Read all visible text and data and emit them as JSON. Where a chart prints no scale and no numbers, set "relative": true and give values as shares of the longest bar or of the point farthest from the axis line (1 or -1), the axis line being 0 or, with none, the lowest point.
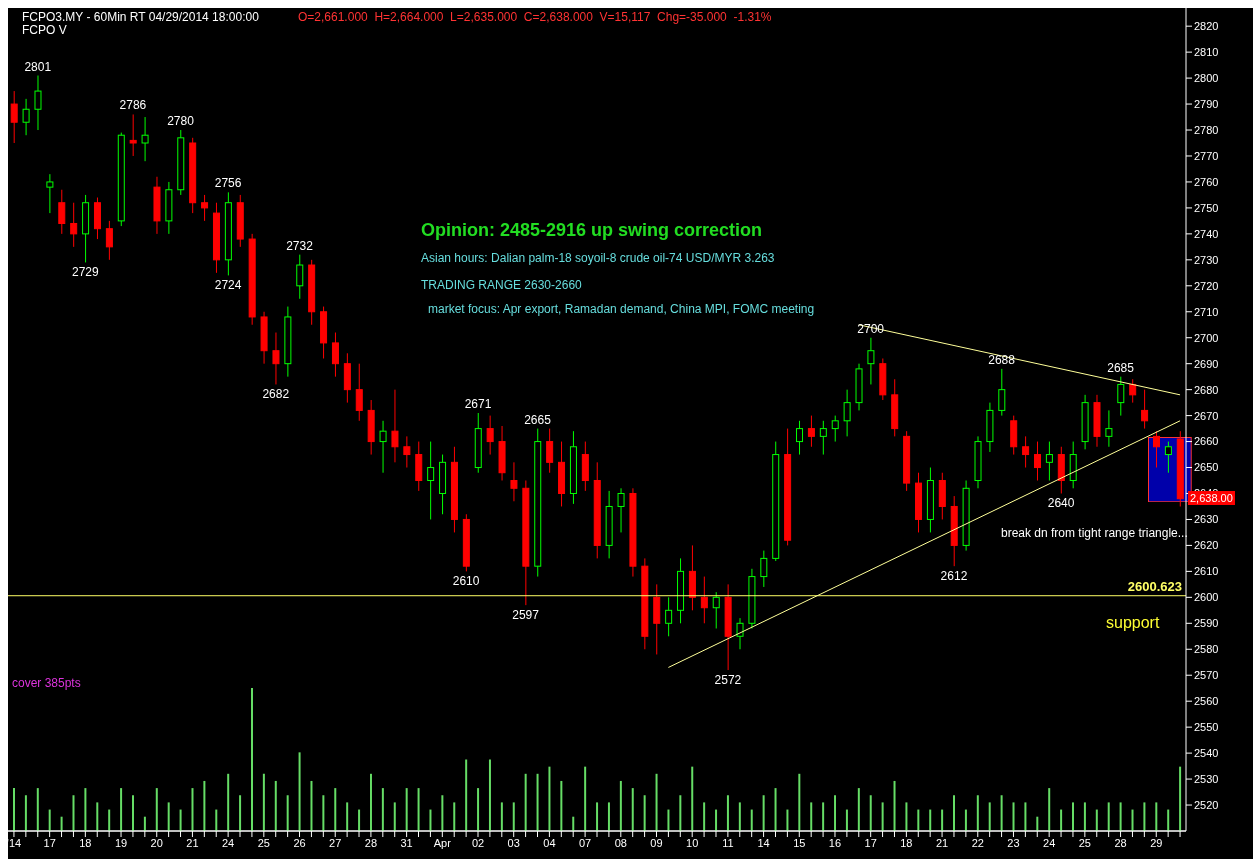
{
  "chart_data": [
    {
      "type": "candlestick",
      "title": "Opinion: 2485-2916 up swing correction",
      "subtitle": "FCPO3.MY - 60Min RT   04/29/2014 18:00:00",
      "categories": [
        "'14",
        null,
        null,
        "17",
        null,
        null,
        "18",
        null,
        null,
        "19",
        null,
        null,
        "20",
        null,
        null,
        "21",
        null,
        null,
        "24",
        null,
        null,
        "25",
        null,
        null,
        "26",
        null,
        null,
        "27",
        null,
        null,
        "28",
        null,
        null,
        "31",
        null,
        null,
        "Apr",
        null,
        null,
        "02",
        null,
        null,
        "03",
        null,
        null,
        "04",
        null,
        null,
        "07",
        null,
        null,
        "08",
        null,
        null,
        "09",
        null,
        null,
        "10",
        null,
        null,
        "11",
        null,
        null,
        "14",
        null,
        null,
        "15",
        null,
        null,
        "16",
        null,
        null,
        "17",
        null,
        null,
        "18",
        null,
        null,
        "21",
        null,
        null,
        "22",
        null,
        null,
        "23",
        null,
        null,
        "24",
        null,
        null,
        "25",
        null,
        null,
        "28",
        null,
        null,
        "29",
        null,
        null
      ],
      "ohlc": [
        [
          2790,
          2795,
          2775,
          2783
        ],
        [
          2783,
          2792,
          2778,
          2788
        ],
        [
          2788,
          2801,
          2780,
          2795
        ],
        [
          2758,
          2763,
          2748,
          2760
        ],
        [
          2752,
          2757,
          2740,
          2744
        ],
        [
          2744,
          2752,
          2735,
          2740
        ],
        [
          2740,
          2755,
          2729,
          2752
        ],
        [
          2752,
          2754,
          2738,
          2742
        ],
        [
          2742,
          2745,
          2730,
          2735
        ],
        [
          2745,
          2779,
          2743,
          2778
        ],
        [
          2776,
          2786,
          2770,
          2775
        ],
        [
          2775,
          2785,
          2768,
          2778
        ],
        [
          2758,
          2762,
          2740,
          2745
        ],
        [
          2745,
          2760,
          2740,
          2757
        ],
        [
          2757,
          2780,
          2755,
          2777
        ],
        [
          2775,
          2777,
          2748,
          2752
        ],
        [
          2752,
          2755,
          2745,
          2750
        ],
        [
          2748,
          2752,
          2725,
          2730
        ],
        [
          2730,
          2756,
          2724,
          2752
        ],
        [
          2752,
          2755,
          2735,
          2738
        ],
        [
          2738,
          2740,
          2705,
          2708
        ],
        [
          2708,
          2710,
          2690,
          2695
        ],
        [
          2695,
          2702,
          2682,
          2690
        ],
        [
          2690,
          2712,
          2685,
          2708
        ],
        [
          2720,
          2732,
          2715,
          2728
        ],
        [
          2728,
          2730,
          2705,
          2710
        ],
        [
          2710,
          2712,
          2692,
          2698
        ],
        [
          2698,
          2702,
          2685,
          2690
        ],
        [
          2690,
          2694,
          2675,
          2680
        ],
        [
          2680,
          2690,
          2668,
          2672
        ],
        [
          2672,
          2676,
          2655,
          2660
        ],
        [
          2660,
          2668,
          2648,
          2664
        ],
        [
          2664,
          2680,
          2652,
          2658
        ],
        [
          2658,
          2662,
          2650,
          2655
        ],
        [
          2655,
          2660,
          2641,
          2645
        ],
        [
          2645,
          2660,
          2630,
          2650
        ],
        [
          2640,
          2655,
          2632,
          2652
        ],
        [
          2652,
          2658,
          2625,
          2630
        ],
        [
          2630,
          2632,
          2610,
          2612
        ],
        [
          2650,
          2671,
          2648,
          2665
        ],
        [
          2665,
          2670,
          2655,
          2660
        ],
        [
          2660,
          2666,
          2645,
          2648
        ],
        [
          2645,
          2652,
          2637,
          2642
        ],
        [
          2642,
          2645,
          2597,
          2612
        ],
        [
          2612,
          2665,
          2608,
          2660
        ],
        [
          2660,
          2665,
          2648,
          2652
        ],
        [
          2652,
          2660,
          2635,
          2640
        ],
        [
          2640,
          2664,
          2636,
          2658
        ],
        [
          2655,
          2660,
          2641,
          2645
        ],
        [
          2645,
          2652,
          2615,
          2620
        ],
        [
          2620,
          2641,
          2615,
          2635
        ],
        [
          2635,
          2642,
          2625,
          2640
        ],
        [
          2640,
          2642,
          2608,
          2612
        ],
        [
          2612,
          2615,
          2580,
          2585
        ],
        [
          2600,
          2605,
          2578,
          2590
        ],
        [
          2590,
          2600,
          2585,
          2595
        ],
        [
          2595,
          2615,
          2590,
          2610
        ],
        [
          2610,
          2620,
          2595,
          2600
        ],
        [
          2600,
          2608,
          2590,
          2596
        ],
        [
          2596,
          2602,
          2588,
          2600
        ],
        [
          2600,
          2605,
          2572,
          2585
        ],
        [
          2585,
          2592,
          2580,
          2590
        ],
        [
          2590,
          2611,
          2588,
          2608
        ],
        [
          2608,
          2618,
          2604,
          2615
        ],
        [
          2615,
          2660,
          2614,
          2655
        ],
        [
          2655,
          2665,
          2620,
          2622
        ],
        [
          2660,
          2668,
          2655,
          2665
        ],
        [
          2665,
          2670,
          2658,
          2662
        ],
        [
          2662,
          2668,
          2655,
          2665
        ],
        [
          2665,
          2670,
          2660,
          2668
        ],
        [
          2668,
          2680,
          2662,
          2675
        ],
        [
          2675,
          2690,
          2672,
          2688
        ],
        [
          2690,
          2700,
          2682,
          2695
        ],
        [
          2690,
          2692,
          2676,
          2678
        ],
        [
          2678,
          2684,
          2662,
          2665
        ],
        [
          2662,
          2664,
          2641,
          2644
        ],
        [
          2644,
          2648,
          2625,
          2630
        ],
        [
          2630,
          2650,
          2625,
          2645
        ],
        [
          2645,
          2648,
          2630,
          2635
        ],
        [
          2635,
          2639,
          2612,
          2620
        ],
        [
          2620,
          2645,
          2618,
          2642
        ],
        [
          2645,
          2662,
          2642,
          2660
        ],
        [
          2660,
          2675,
          2656,
          2672
        ],
        [
          2672,
          2688,
          2670,
          2680
        ],
        [
          2668,
          2670,
          2655,
          2658
        ],
        [
          2658,
          2662,
          2650,
          2655
        ],
        [
          2655,
          2660,
          2645,
          2650
        ],
        [
          2652,
          2660,
          2645,
          2655
        ],
        [
          2655,
          2658,
          2640,
          2645
        ],
        [
          2645,
          2660,
          2642,
          2655
        ],
        [
          2660,
          2678,
          2657,
          2675
        ],
        [
          2675,
          2678,
          2658,
          2662
        ],
        [
          2662,
          2672,
          2658,
          2665
        ],
        [
          2675,
          2685,
          2670,
          2682
        ],
        [
          2682,
          2684,
          2675,
          2678
        ],
        [
          2672,
          2680,
          2665,
          2668
        ],
        [
          2662,
          2664,
          2650,
          2658
        ],
        [
          2655,
          2660,
          2648,
          2658
        ],
        [
          2661,
          2664,
          2635,
          2638
        ]
      ],
      "series": [
        {
          "type": "line",
          "color": "#ffff99",
          "values": [
            null,
            null,
            null,
            null,
            null,
            null,
            null,
            null,
            null,
            null,
            null,
            null,
            null,
            null,
            null,
            null,
            null,
            null,
            null,
            null,
            null,
            null,
            null,
            null,
            null,
            null,
            null,
            null,
            null,
            null,
            null,
            null,
            null,
            null,
            null,
            null,
            null,
            null,
            null,
            null,
            null,
            null,
            null,
            null,
            null,
            null,
            null,
            null,
            null,
            null,
            null,
            null,
            null,
            null,
            null,
            null,
            null,
            null,
            null,
            null,
            null,
            null,
            null,
            null,
            null,
            null,
            null,
            null,
            null,
            null,
            null,
            2705,
            null,
            null,
            null,
            null,
            null,
            null,
            null,
            null,
            null,
            null,
            null,
            null,
            null,
            null,
            null,
            null,
            null,
            null,
            null,
            null,
            null,
            null,
            null,
            null,
            null,
            null,
            2678
          ]
        },
        {
          "type": "line",
          "color": "#ffff99",
          "values": [
            null,
            null,
            null,
            null,
            null,
            null,
            null,
            null,
            null,
            null,
            null,
            null,
            null,
            null,
            null,
            null,
            null,
            null,
            null,
            null,
            null,
            null,
            null,
            null,
            null,
            null,
            null,
            null,
            null,
            null,
            null,
            null,
            null,
            null,
            null,
            null,
            null,
            null,
            null,
            null,
            null,
            null,
            null,
            null,
            null,
            null,
            null,
            null,
            null,
            null,
            null,
            null,
            null,
            null,
            null,
            2573,
            null,
            null,
            null,
            null,
            null,
            null,
            null,
            null,
            null,
            null,
            null,
            null,
            null,
            null,
            null,
            null,
            null,
            null,
            null,
            null,
            null,
            null,
            null,
            null,
            null,
            null,
            null,
            null,
            null,
            null,
            null,
            null,
            null,
            null,
            null,
            null,
            null,
            null,
            null,
            null,
            null,
            null,
            2668
          ]
        }
      ],
      "ylim": [
        2510,
        2827
      ],
      "yticks": [
        2520,
        2530,
        2540,
        2550,
        2560,
        2570,
        2580,
        2590,
        2600,
        2610,
        2620,
        2630,
        2640,
        2650,
        2660,
        2670,
        2680,
        2690,
        2700,
        2710,
        2720,
        2730,
        2740,
        2750,
        2760,
        2770,
        2780,
        2790,
        2800,
        2810,
        2820
      ],
      "ref_lines": [
        {
          "axis": "y",
          "value": 2600.623,
          "label": "2600.623",
          "color": "#ffff66"
        }
      ],
      "annotations": [
        "O=2,661.000  H=2,664.000  L=2,635.000  C=2,638.000  V=15,117  Chg=-35.000  -1.31%",
        "FCPO V",
        "Asian hours: Dalian palm-18 soyoil-8 crude oil-74 USD/MYR 3.263",
        "TRADING RANGE 2630-2660",
        "market focus: Apr export, Ramadan demand, China MPI, FOMC meeting",
        "break dn from tight range triangle...",
        "support",
        "cover 385pts",
        "2,638.00",
        {
          "text": "2801",
          "y": 2801
        },
        {
          "text": "2786",
          "y": 2786
        },
        {
          "text": "2780",
          "y": 2780
        },
        {
          "text": "2729",
          "y": 2729
        },
        {
          "text": "2756",
          "y": 2756
        },
        {
          "text": "2724",
          "y": 2724
        },
        {
          "text": "2732",
          "y": 2732
        },
        {
          "text": "2682",
          "y": 2682
        },
        {
          "text": "2671",
          "y": 2671
        },
        {
          "text": "2610",
          "y": 2610
        },
        {
          "text": "2665",
          "y": 2665
        },
        {
          "text": "2597",
          "y": 2597
        },
        {
          "text": "2572",
          "y": 2572
        },
        {
          "text": "2700",
          "y": 2700
        },
        {
          "text": "2612",
          "y": 2612
        },
        {
          "text": "2688",
          "y": 2688
        },
        {
          "text": "2640",
          "y": 2640
        },
        {
          "text": "2685",
          "y": 2685
        }
      ]
    },
    {
      "type": "bar",
      "relative": true,
      "color": "#66dd66",
      "categories": [
        null,
        null,
        null,
        null,
        null,
        null,
        null,
        null,
        null,
        null,
        null,
        null,
        null,
        null,
        null,
        null,
        null,
        null,
        null,
        null,
        null,
        null,
        null,
        null,
        null,
        null,
        null,
        null,
        null,
        null,
        null,
        null,
        null,
        null,
        null,
        null,
        null,
        null,
        null,
        null,
        null,
        null,
        null,
        null,
        null,
        null,
        null,
        null,
        null,
        null,
        null,
        null,
        null,
        null,
        null,
        null,
        null,
        null,
        null,
        null,
        null,
        null,
        null,
        null,
        null,
        null,
        null,
        null,
        null,
        null,
        null,
        null,
        null,
        null,
        null,
        null,
        null,
        null,
        null,
        null,
        null,
        null,
        null,
        null,
        null,
        null,
        null,
        null,
        null,
        null,
        null,
        null,
        null,
        null,
        null,
        null,
        null,
        null,
        null
      ],
      "values": [
        0.3,
        0.25,
        0.3,
        0.15,
        0.1,
        0.25,
        0.3,
        0.2,
        0.15,
        0.3,
        0.25,
        0.1,
        0.3,
        0.2,
        0.15,
        0.3,
        0.35,
        0.15,
        0.4,
        0.25,
        1.0,
        0.4,
        0.35,
        0.25,
        0.55,
        0.35,
        0.25,
        0.3,
        0.2,
        0.15,
        0.4,
        0.3,
        0.2,
        0.3,
        0.3,
        0.15,
        0.25,
        0.2,
        0.5,
        0.3,
        0.5,
        0.2,
        0.2,
        0.4,
        0.4,
        0.45,
        0.35,
        0.1,
        0.45,
        0.2,
        0.2,
        0.35,
        0.3,
        0.25,
        0.4,
        0.15,
        0.25,
        0.45,
        0.2,
        0.15,
        0.25,
        0.2,
        0.15,
        0.25,
        0.3,
        0.15,
        0.4,
        0.2,
        0.2,
        0.25,
        0.15,
        0.3,
        0.25,
        0.2,
        0.35,
        0.2,
        0.15,
        0.15,
        0.15,
        0.25,
        0.15,
        0.25,
        0.2,
        0.25,
        0.2,
        0.2,
        0.1,
        0.3,
        0.15,
        0.2,
        0.2,
        0.15,
        0.2,
        0.2,
        0.15,
        0.2,
        0.2,
        0.15,
        0.45
      ]
    }
  ]
}
